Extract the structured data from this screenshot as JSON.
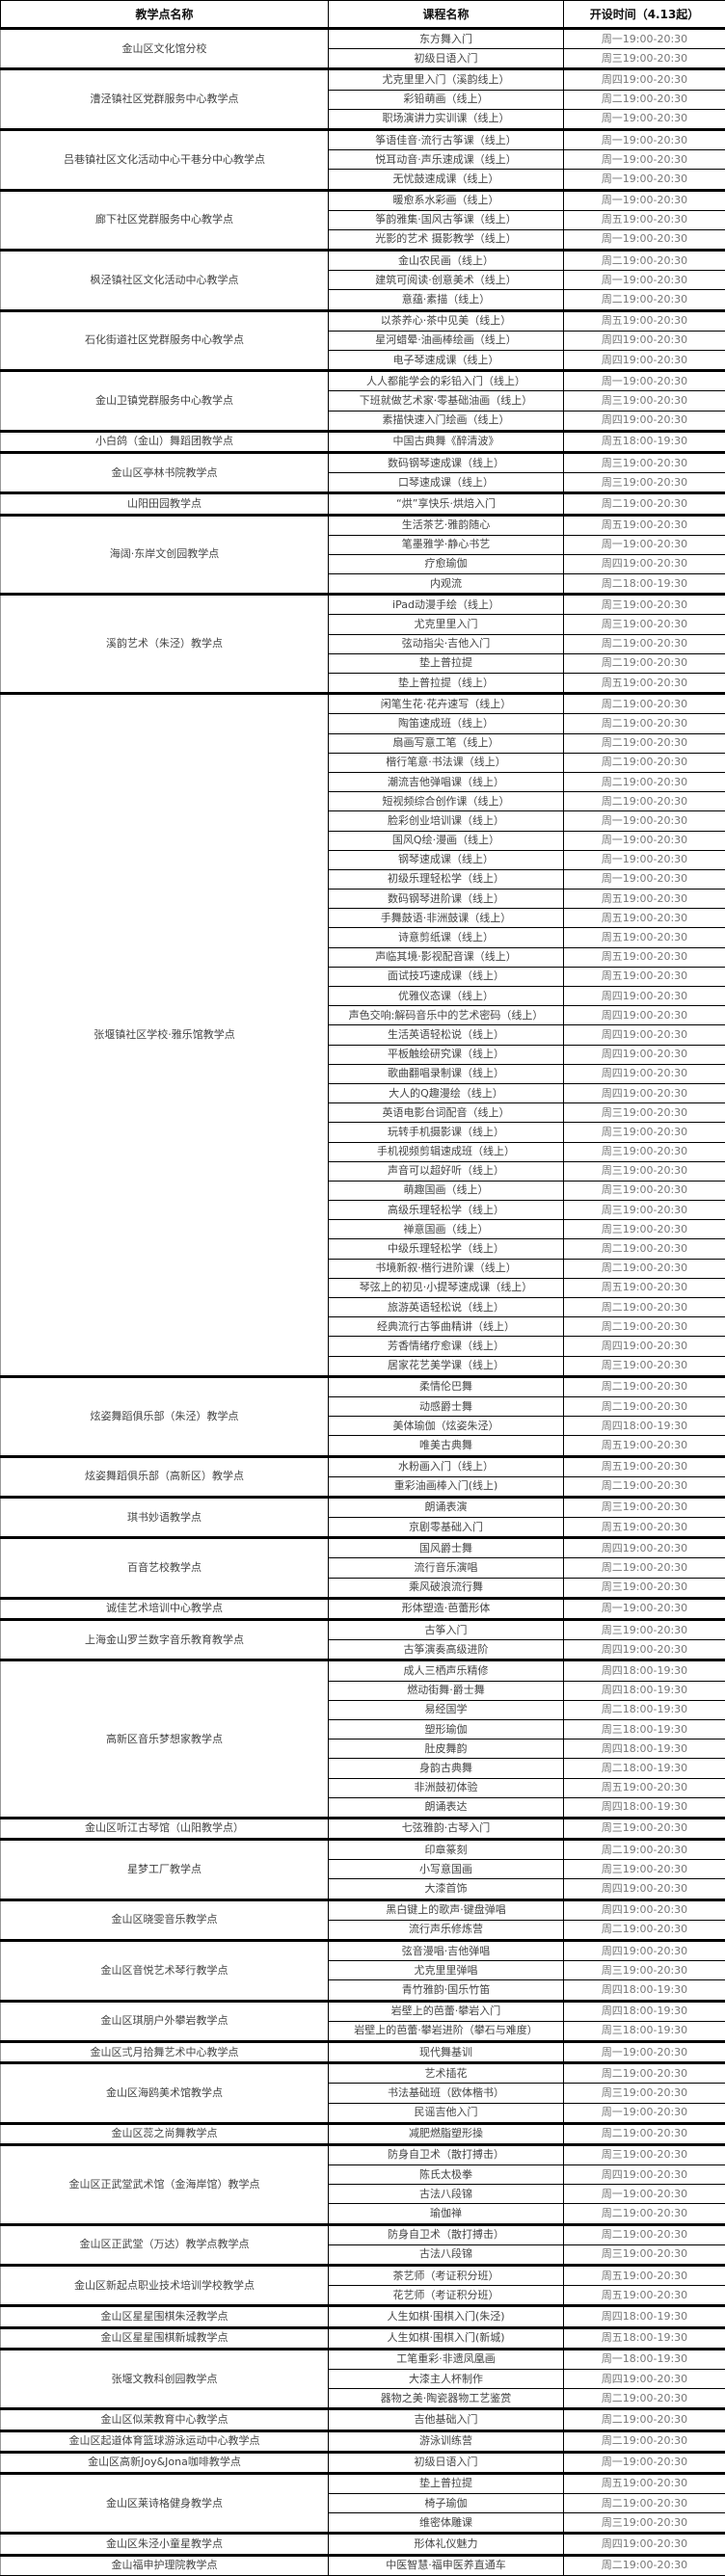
{
  "header": {
    "site": "教学点名称",
    "course": "课程名称",
    "time": "开设时间（4.13起）"
  },
  "groups": [
    {
      "name": "金山区文化馆分校",
      "courses": [
        {
          "course": "东方舞入门",
          "time": "周一19:00-20:30"
        },
        {
          "course": "初级日语入门",
          "time": "周三19:00-20:30"
        }
      ]
    },
    {
      "name": "漕泾镇社区党群服务中心教学点",
      "courses": [
        {
          "course": "尤克里里入门（溪韵线上）",
          "time": "周四19:00-20:30"
        },
        {
          "course": "彩铅萌画（线上）",
          "time": "周二19:00-20:30"
        },
        {
          "course": "职场演讲力实训课（线上）",
          "time": "周一19:00-20:30"
        }
      ]
    },
    {
      "name": "吕巷镇社区文化活动中心干巷分中心教学点",
      "courses": [
        {
          "course": "筝语佳音·流行古筝课（线上）",
          "time": "周一19:00-20:30"
        },
        {
          "course": "悦耳动音·声乐速成课（线上）",
          "time": "周一19:00-20:30"
        },
        {
          "course": "无忧鼓速成课（线上）",
          "time": "周一19:00-20:30"
        }
      ]
    },
    {
      "name": "廊下社区党群服务中心教学点",
      "courses": [
        {
          "course": "暖愈系水彩画（线上）",
          "time": "周一19:00-20:30"
        },
        {
          "course": "筝韵雅集·国风古筝课（线上）",
          "time": "周五19:00-20:30"
        },
        {
          "course": "光影的艺术 摄影教学（线上）",
          "time": "周一19:00-20:30"
        }
      ]
    },
    {
      "name": "枫泾镇社区文化活动中心教学点",
      "courses": [
        {
          "course": "金山农民画（线上）",
          "time": "周二19:00-20:30"
        },
        {
          "course": "建筑可阅读·创意美术（线上）",
          "time": "周一19:00-20:30"
        },
        {
          "course": "意蕴·素描（线上）",
          "time": "周二19:00-20:30"
        }
      ]
    },
    {
      "name": "石化街道社区党群服务中心教学点",
      "courses": [
        {
          "course": "以茶养心·茶中见美（线上）",
          "time": "周五19:00-20:30"
        },
        {
          "course": "星河蜡晕·油画棒绘画（线上）",
          "time": "周四19:00-20:30"
        },
        {
          "course": "电子琴速成课（线上）",
          "time": "周四19:00-20:30"
        }
      ]
    },
    {
      "name": "金山卫镇党群服务中心教学点",
      "courses": [
        {
          "course": "人人都能学会的彩铅入门（线上）",
          "time": "周一19:00-20:30"
        },
        {
          "course": "下班就做艺术家·零基础油画（线上）",
          "time": "周三19:00-20:30"
        },
        {
          "course": "素描快速入门绘画（线上）",
          "time": "周四19:00-20:30"
        }
      ]
    },
    {
      "name": "小白鸽（金山）舞蹈团教学点",
      "courses": [
        {
          "course": "中国古典舞《醉清波》",
          "time": "周五18:00-19:30"
        }
      ]
    },
    {
      "name": "金山区亭林书院教学点",
      "courses": [
        {
          "course": "数码钢琴速成课（线上）",
          "time": "周三19:00-20:30"
        },
        {
          "course": "口琴速成课（线上）",
          "time": "周三19:00-20:30"
        }
      ]
    },
    {
      "name": "山阳田园教学点",
      "courses": [
        {
          "course": "“烘”享快乐·烘焙入门",
          "time": "周二19:00-20:30"
        }
      ]
    },
    {
      "name": "海阔·东岸文创园教学点",
      "courses": [
        {
          "course": "生活茶艺·雅韵随心",
          "time": "周五19:00-20:30"
        },
        {
          "course": "笔墨雅学·静心书艺",
          "time": "周一19:00-20:30"
        },
        {
          "course": "疗愈瑜伽",
          "time": "周四19:00-20:30"
        },
        {
          "course": "内观流",
          "time": "周二18:00-19:30"
        }
      ]
    },
    {
      "name": "溪韵艺术（朱泾）教学点",
      "courses": [
        {
          "course": "iPad动漫手绘（线上）",
          "time": "周三19:00-20:30"
        },
        {
          "course": "尤克里里入门",
          "time": "周三19:00-20:30"
        },
        {
          "course": "弦动指尖·吉他入门",
          "time": "周二19:00-20:30"
        },
        {
          "course": "垫上普拉提",
          "time": "周二19:00-20:30"
        },
        {
          "course": "垫上普拉提（线上）",
          "time": "周五19:00-20:30"
        }
      ]
    },
    {
      "name": "张堰镇社区学校·雅乐馆教学点",
      "courses": [
        {
          "course": "闲笔生花·花卉速写（线上）",
          "time": "周二19:00-20:30"
        },
        {
          "course": "陶笛速成班（线上）",
          "time": "周二19:00-20:30"
        },
        {
          "course": "扇画写意工笔（线上）",
          "time": "周二19:00-20:30"
        },
        {
          "course": "楷行笔意·书法课（线上）",
          "time": "周二19:00-20:30"
        },
        {
          "course": "潮流吉他弹唱课（线上）",
          "time": "周二19:00-20:30"
        },
        {
          "course": "短视频综合创作课（线上）",
          "time": "周二19:00-20:30"
        },
        {
          "course": "脸彩创业培训课（线上）",
          "time": "周一19:00-20:30"
        },
        {
          "course": "国风Q绘·漫画（线上）",
          "time": "周一19:00-20:30"
        },
        {
          "course": "钢琴速成课（线上）",
          "time": "周一19:00-20:30"
        },
        {
          "course": "初级乐理轻松学（线上）",
          "time": "周一19:00-20:30"
        },
        {
          "course": "数码钢琴进阶课（线上）",
          "time": "周五19:00-20:30"
        },
        {
          "course": "手舞鼓语·非洲鼓课（线上）",
          "time": "周五19:00-20:30"
        },
        {
          "course": "诗意剪纸课（线上）",
          "time": "周五19:00-20:30"
        },
        {
          "course": "声临其境·影视配音课（线上）",
          "time": "周五19:00-20:30"
        },
        {
          "course": "面试技巧速成课（线上）",
          "time": "周五19:00-20:30"
        },
        {
          "course": "优雅仪态课（线上）",
          "time": "周四19:00-20:30"
        },
        {
          "course": "声色交响:解码音乐中的艺术密码（线上）",
          "time": "周四19:00-20:30"
        },
        {
          "course": "生活英语轻松说（线上）",
          "time": "周四19:00-20:30"
        },
        {
          "course": "平板触绘研究课（线上）",
          "time": "周四19:00-20:30"
        },
        {
          "course": "歌曲翻唱录制课（线上）",
          "time": "周四19:00-20:30"
        },
        {
          "course": "大人的Q趣漫绘（线上）",
          "time": "周四19:00-20:30"
        },
        {
          "course": "英语电影台词配音（线上）",
          "time": "周三19:00-20:30"
        },
        {
          "course": "玩转手机摄影课（线上）",
          "time": "周三19:00-20:30"
        },
        {
          "course": "手机视频剪辑速成班（线上）",
          "time": "周三19:00-20:30"
        },
        {
          "course": "声音可以超好听（线上）",
          "time": "周三19:00-20:30"
        },
        {
          "course": "萌趣国画（线上）",
          "time": "周三19:00-20:30"
        },
        {
          "course": "高级乐理轻松学（线上）",
          "time": "周三19:00-20:30"
        },
        {
          "course": "禅意国画（线上）",
          "time": "周三19:00-20:30"
        },
        {
          "course": "中级乐理轻松学（线上）",
          "time": "周二19:00-20:30"
        },
        {
          "course": "书境新叙·楷行进阶课（线上）",
          "time": "周二19:00-20:30"
        },
        {
          "course": "琴弦上的初见·小提琴速成课（线上）",
          "time": "周五19:00-20:30"
        },
        {
          "course": "旅游英语轻松说（线上）",
          "time": "周二19:00-20:30"
        },
        {
          "course": "经典流行古筝曲精讲（线上）",
          "time": "周二19:00-20:30"
        },
        {
          "course": "芳香情绪疗愈课（线上）",
          "time": "周四19:00-20:30"
        },
        {
          "course": "居家花艺美学课（线上）",
          "time": "周三19:00-20:30"
        }
      ]
    },
    {
      "name": "炫姿舞蹈俱乐部（朱泾）教学点",
      "courses": [
        {
          "course": "柔情伦巴舞",
          "time": "周二19:00-20:30"
        },
        {
          "course": "动感爵士舞",
          "time": "周二19:00-20:30"
        },
        {
          "course": "美体瑜伽（炫姿朱泾）",
          "time": "周四18:00-19:30"
        },
        {
          "course": "唯美古典舞",
          "time": "周五19:00-20:30"
        }
      ]
    },
    {
      "name": "炫姿舞蹈俱乐部（高新区）教学点",
      "courses": [
        {
          "course": "水粉画入门（线上）",
          "time": "周五19:00-20:30"
        },
        {
          "course": "重彩油画棒入门(线上)",
          "time": "周二19:00-20:30"
        }
      ]
    },
    {
      "name": "琪书妙语教学点",
      "courses": [
        {
          "course": "朗诵表演",
          "time": "周三19:00-20:30"
        },
        {
          "course": "京剧零基础入门",
          "time": "周五19:00-20:30"
        }
      ]
    },
    {
      "name": "百音艺校教学点",
      "courses": [
        {
          "course": "国风爵士舞",
          "time": "周四19:00-20:30"
        },
        {
          "course": "流行音乐演唱",
          "time": "周二19:00-20:30"
        },
        {
          "course": "乘风破浪流行舞",
          "time": "周三19:00-20:30"
        }
      ]
    },
    {
      "name": "诚佳艺术培训中心教学点",
      "courses": [
        {
          "course": "形体塑造·芭蕾形体",
          "time": "周一19:00-20:30"
        }
      ]
    },
    {
      "name": "上海金山罗兰数字音乐教育教学点",
      "courses": [
        {
          "course": "古筝入门",
          "time": "周三19:00-20:30"
        },
        {
          "course": "古筝演奏高级进阶",
          "time": "周四19:00-20:30"
        }
      ]
    },
    {
      "name": "高新区音乐梦想家教学点",
      "courses": [
        {
          "course": "成人三栖声乐精修",
          "time": "周四18:00-19:30"
        },
        {
          "course": "燃动街舞·爵士舞",
          "time": "周四18:00-19:30"
        },
        {
          "course": "易经国学",
          "time": "周二18:00-19:30"
        },
        {
          "course": "塑形瑜伽",
          "time": "周三18:00-19:30"
        },
        {
          "course": "肚皮舞韵",
          "time": "周四18:00-19:30"
        },
        {
          "course": "身韵古典舞",
          "time": "周二18:00-19:30"
        },
        {
          "course": "非洲鼓初体验",
          "time": "周五19:00-20:30"
        },
        {
          "course": "朗诵表达",
          "time": "周四18:00-19:30"
        }
      ]
    },
    {
      "name": "金山区听江古琴馆（山阳教学点）",
      "courses": [
        {
          "course": "七弦雅韵·古琴入门",
          "time": "周三19:00-20:30"
        }
      ]
    },
    {
      "name": "星梦工厂教学点",
      "courses": [
        {
          "course": "印章篆刻",
          "time": "周二19:00-20:30"
        },
        {
          "course": "小写意国画",
          "time": "周三19:00-20:30"
        },
        {
          "course": "大漆首饰",
          "time": "周四19:00-20:30"
        }
      ]
    },
    {
      "name": "金山区晓雯音乐教学点",
      "courses": [
        {
          "course": "黑白键上的歌声·键盘弹唱",
          "time": "周四19:00-20:30"
        },
        {
          "course": "流行声乐修炼营",
          "time": "周二19:00-20:30"
        }
      ]
    },
    {
      "name": "金山区音悦艺术琴行教学点",
      "courses": [
        {
          "course": "弦音漫唱·吉他弹唱",
          "time": "周四19:00-20:30"
        },
        {
          "course": "尤克里里弹唱",
          "time": "周三19:00-20:30"
        },
        {
          "course": "青竹雅韵·国乐竹笛",
          "time": "周四18:00-19:30"
        }
      ]
    },
    {
      "name": "金山区琪朋户外攀岩教学点",
      "courses": [
        {
          "course": "岩壁上的芭蕾·攀岩入门",
          "time": "周四18:00-19:30"
        },
        {
          "course": "岩壁上的芭蕾·攀岩进阶（攀石与难度）",
          "time": "周三18:00-19:30"
        }
      ]
    },
    {
      "name": "金山区弍月拾舞艺术中心教学点",
      "courses": [
        {
          "course": "现代舞基训",
          "time": "周一19:00-20:30"
        }
      ]
    },
    {
      "name": "金山区海鸥美术馆教学点",
      "courses": [
        {
          "course": "艺术插花",
          "time": "周二19:00-20:30"
        },
        {
          "course": "书法基础班（欧体楷书）",
          "time": "周三19:00-20:30"
        },
        {
          "course": "民谣吉他入门",
          "time": "周一19:00-20:30"
        }
      ]
    },
    {
      "name": "金山区蕊之尚舞教学点",
      "courses": [
        {
          "course": "减肥燃脂塑形操",
          "time": "周二19:00-20:30"
        }
      ]
    },
    {
      "name": "金山区正武堂武术馆（金海岸馆）教学点",
      "courses": [
        {
          "course": "防身自卫术（散打搏击）",
          "time": "周三19:00-20:30"
        },
        {
          "course": "陈氏太极拳",
          "time": "周四19:00-20:30"
        },
        {
          "course": "古法八段锦",
          "time": "周一19:00-20:30"
        },
        {
          "course": "瑜伽禅",
          "time": "周二19:00-20:30"
        }
      ]
    },
    {
      "name": "金山区正武堂（万达）教学点教学点",
      "courses": [
        {
          "course": "防身自卫术（散打搏击）",
          "time": "周二19:00-20:30"
        },
        {
          "course": "古法八段锦",
          "time": "周三19:00-20:30"
        }
      ]
    },
    {
      "name": "金山区新起点职业技术培训学校教学点",
      "courses": [
        {
          "course": "茶艺师（考证积分班）",
          "time": "周五19:00-20:30"
        },
        {
          "course": "花艺师（考证积分班）",
          "time": "周五19:00-20:30"
        }
      ]
    },
    {
      "name": "金山区星星围棋朱泾教学点",
      "courses": [
        {
          "course": "人生如棋·围棋入门(朱泾)",
          "time": "周四18:00-19:30"
        }
      ]
    },
    {
      "name": "金山区星星围棋新城教学点",
      "courses": [
        {
          "course": "人生如棋·围棋入门(新城)",
          "time": "周五18:00-19:30"
        }
      ]
    },
    {
      "name": "张堰文教科创园教学点",
      "courses": [
        {
          "course": "工笔重彩·非遗凤凰画",
          "time": "周一18:00-19:30"
        },
        {
          "course": "大漆主人杯制作",
          "time": "周四19:00-20:30"
        },
        {
          "course": "器物之美·陶瓷器物工艺鉴赏",
          "time": "周二19:00-20:30"
        }
      ]
    },
    {
      "name": "金山区似茉教育中心教学点",
      "courses": [
        {
          "course": "吉他基础入门",
          "time": "周二19:00-20:30"
        }
      ]
    },
    {
      "name": "金山区起道体育篮球游泳运动中心教学点",
      "courses": [
        {
          "course": "游泳训练营",
          "time": "周二19:00-20:30"
        }
      ]
    },
    {
      "name": "金山区高新Joy&Jona咖啡教学点",
      "courses": [
        {
          "course": "初级日语入门",
          "time": "周一19:00-20:30"
        }
      ]
    },
    {
      "name": "金山区莱诗格健身教学点",
      "courses": [
        {
          "course": "垫上普拉提",
          "time": "周五19:00-20:30"
        },
        {
          "course": "椅子瑜伽",
          "time": "周二19:00-20:30"
        },
        {
          "course": "维密体雕课",
          "time": "周三19:00-20:30"
        }
      ]
    },
    {
      "name": "金山区朱泾小童星教学点",
      "courses": [
        {
          "course": "形体礼仪魅力",
          "time": "周四19:00-20:30"
        }
      ]
    },
    {
      "name": "金山福申护理院教学点",
      "courses": [
        {
          "course": "中医智慧·福申医养直通车",
          "time": "周二19:00-20:30"
        }
      ]
    }
  ]
}
